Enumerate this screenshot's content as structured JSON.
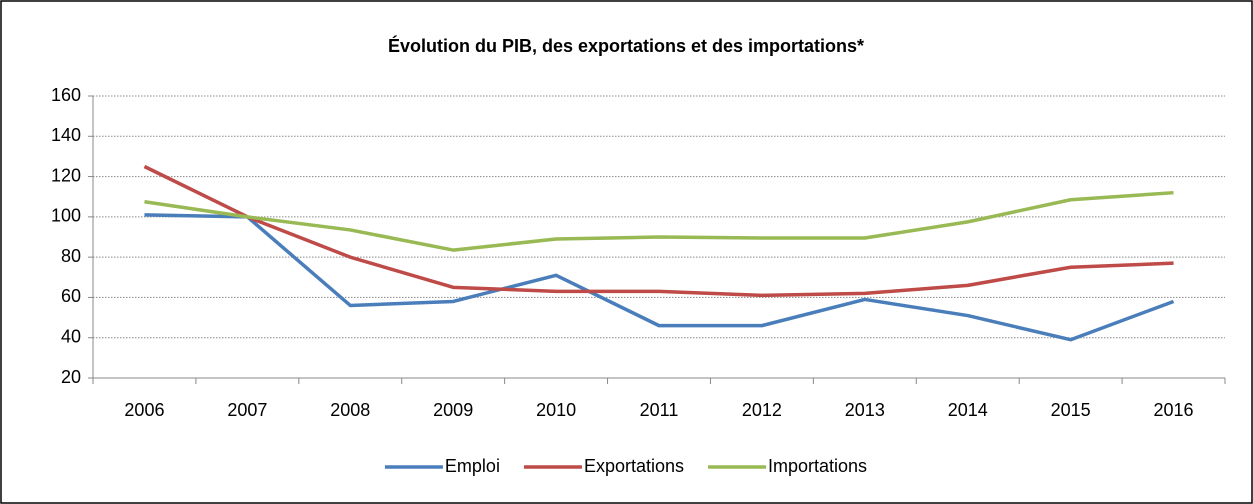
{
  "chart_data": {
    "type": "line",
    "title": "Évolution du PIB, des exportations et des importations*",
    "categories": [
      "2006",
      "2007",
      "2008",
      "2009",
      "2010",
      "2011",
      "2012",
      "2013",
      "2014",
      "2015",
      "2016"
    ],
    "series": [
      {
        "name": "Emploi",
        "color": "#4a7ebb",
        "values": [
          101,
          100,
          56,
          58,
          71,
          46,
          46,
          59,
          51,
          39,
          58
        ]
      },
      {
        "name": "Exportations",
        "color": "#be4b48",
        "values": [
          125,
          100,
          80,
          65,
          63,
          63,
          61,
          62,
          66,
          75,
          77
        ]
      },
      {
        "name": "Importations",
        "color": "#98b954",
        "values": [
          107.5,
          100,
          93.5,
          83.5,
          89,
          90,
          89.5,
          89.5,
          97.5,
          108.5,
          112
        ]
      }
    ],
    "ylim": [
      20,
      160
    ],
    "yticks": [
      20,
      40,
      60,
      80,
      100,
      120,
      140,
      160
    ],
    "grid": true,
    "legend": "bottom"
  }
}
